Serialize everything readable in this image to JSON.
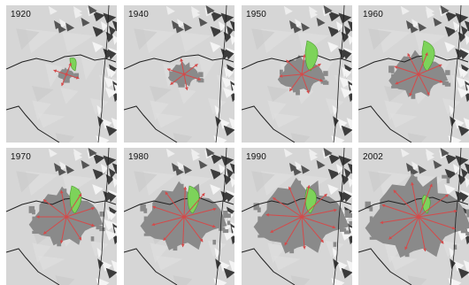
{
  "colors": {
    "terrain": "#d6d6d6",
    "urban": "#8a8a8a",
    "green": "#7dd35a",
    "arrow": "#d44a4a",
    "line": "#202020"
  },
  "icons": [
    "relief-shading",
    "expansion-arrow",
    "urban-area",
    "green-area"
  ],
  "panels": [
    {
      "year": "1920",
      "city_scale": 0.16,
      "arrows": 4,
      "green_scale": 0.35
    },
    {
      "year": "1940",
      "city_scale": 0.3,
      "arrows": 6,
      "green_scale": 0.0
    },
    {
      "year": "1950",
      "city_scale": 0.45,
      "arrows": 7,
      "green_scale": 1.0
    },
    {
      "year": "1960",
      "city_scale": 0.56,
      "arrows": 8,
      "green_scale": 1.0
    },
    {
      "year": "1970",
      "city_scale": 0.7,
      "arrows": 9,
      "green_scale": 0.9
    },
    {
      "year": "1980",
      "city_scale": 0.82,
      "arrows": 10,
      "green_scale": 0.9
    },
    {
      "year": "1990",
      "city_scale": 0.9,
      "arrows": 11,
      "green_scale": 0.85
    },
    {
      "year": "2002",
      "city_scale": 1.0,
      "arrows": 12,
      "green_scale": 0.55
    }
  ]
}
